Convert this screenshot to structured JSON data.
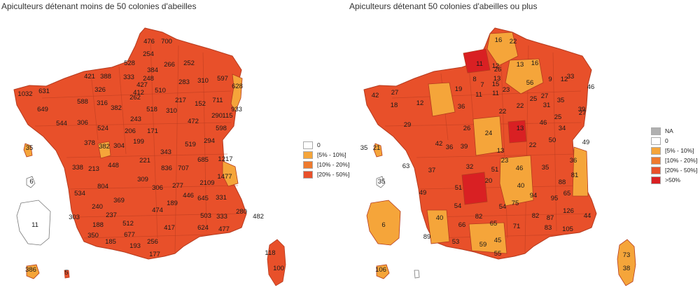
{
  "colors": {
    "na": "#b0b0b0",
    "zero": "#ffffff",
    "c5_10": "#f5a53a",
    "c10_20": "#ee7a2e",
    "c20_50": "#e8502a",
    "c50": "#d92023"
  },
  "left_map": {
    "title": "Apiculteurs détenant moins de 50 colonies d'abeilles",
    "legend": [
      {
        "label": "0",
        "color": "#ffffff"
      },
      {
        "label": "[5% - 10%]",
        "color": "#f5a53a"
      },
      {
        "label": "[10% - 20%]",
        "color": "#ee7a2e"
      },
      {
        "label": "[20% - 50%]",
        "color": "#e8502a"
      }
    ],
    "labels": [
      "476",
      "700",
      "254",
      "528",
      "266",
      "252",
      "384",
      "421",
      "388",
      "333",
      "248",
      "310",
      "597",
      "628",
      "326",
      "427",
      "283",
      "1032",
      "631",
      "412",
      "510",
      "588",
      "316",
      "262",
      "217",
      "711",
      "152",
      "649",
      "382",
      "518",
      "310",
      "933",
      "243",
      "472",
      "290",
      "115",
      "544",
      "306",
      "524",
      "206",
      "171",
      "598",
      "199",
      "519",
      "294",
      "378",
      "382",
      "304",
      "343",
      "685",
      "1217",
      "221",
      "338",
      "213",
      "448",
      "836",
      "707",
      "1477",
      "309",
      "2109",
      "804",
      "306",
      "277",
      "446",
      "645",
      "331",
      "534",
      "369",
      "474",
      "189",
      "240",
      "237",
      "503",
      "333",
      "280",
      "482",
      "303",
      "188",
      "512",
      "417",
      "624",
      "477",
      "350",
      "677",
      "256",
      "185",
      "193",
      "177",
      "35",
      "6",
      "11",
      "118",
      "100",
      "386",
      "5"
    ]
  },
  "right_map": {
    "title": "Apiculteurs détenant 50 colonies d'abeilles ou plus",
    "legend": [
      {
        "label": "NA",
        "color": "#b0b0b0"
      },
      {
        "label": "0",
        "color": "#ffffff"
      },
      {
        "label": "[5% - 10%]",
        "color": "#f5a53a"
      },
      {
        "label": "[10% - 20%]",
        "color": "#ee7a2e"
      },
      {
        "label": "[20% - 50%]",
        "color": "#e8502a"
      },
      {
        "label": ">50%",
        "color": "#d92023"
      }
    ],
    "labels": [
      "16",
      "22",
      "11",
      "12",
      "26",
      "13",
      "16",
      "13",
      "8",
      "7",
      "15",
      "56",
      "9",
      "12",
      "33",
      "46",
      "42",
      "27",
      "19",
      "11",
      "11",
      "23",
      "25",
      "27",
      "18",
      "12",
      "36",
      "22",
      "31",
      "35",
      "39",
      "22",
      "29",
      "26",
      "24",
      "46",
      "25",
      "27",
      "35",
      "13",
      "34",
      "42",
      "36",
      "39",
      "13",
      "22",
      "50",
      "49",
      "36",
      "63",
      "37",
      "32",
      "23",
      "46",
      "35",
      "51",
      "81",
      "20",
      "88",
      "49",
      "51",
      "40",
      "94",
      "95",
      "65",
      "6",
      "40",
      "54",
      "75",
      "126",
      "82",
      "54",
      "82",
      "87",
      "44",
      "66",
      "65",
      "83",
      "105",
      "89",
      "53",
      "59",
      "71",
      "45",
      "55",
      "21",
      "35",
      "73",
      "38",
      "106"
    ]
  }
}
